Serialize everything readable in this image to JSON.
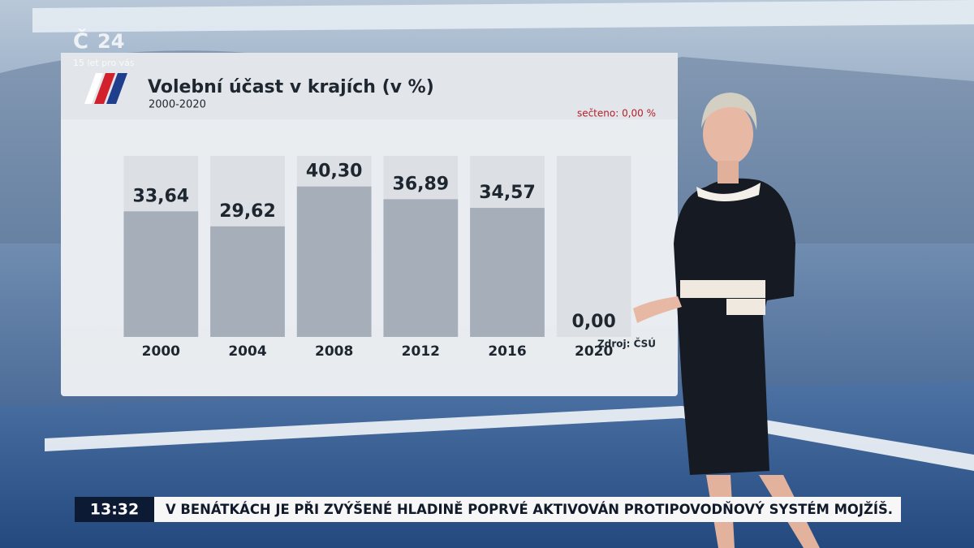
{
  "chart_data": {
    "type": "bar",
    "title": "Volební účast v krajích (v %)",
    "subtitle": "2000-2020",
    "counted": "sečteno: 0,00 %",
    "source": "Zdroj: ČSÚ",
    "categories": [
      "2000",
      "2004",
      "2008",
      "2012",
      "2016",
      "2020"
    ],
    "values": [
      33.64,
      29.62,
      40.3,
      36.89,
      34.57,
      0.0
    ],
    "value_labels": [
      "33,64",
      "29,62",
      "40,30",
      "36,89",
      "34,57",
      "0,00"
    ],
    "color": "#a5aeb9",
    "track_color": "#dcdfe3",
    "ylim": [
      0,
      48.5
    ]
  },
  "logo": {
    "channel": "24",
    "tagline": "15 let pro vás"
  },
  "ticker": {
    "time": "13:32",
    "text": "V BENÁTKÁCH JE PŘI ZVÝŠENÉ HLADINĚ POPRVÉ AKTIVOVÁN PROTIPOVODŇOVÝ SYSTÉM MOJŽÍŠ."
  }
}
